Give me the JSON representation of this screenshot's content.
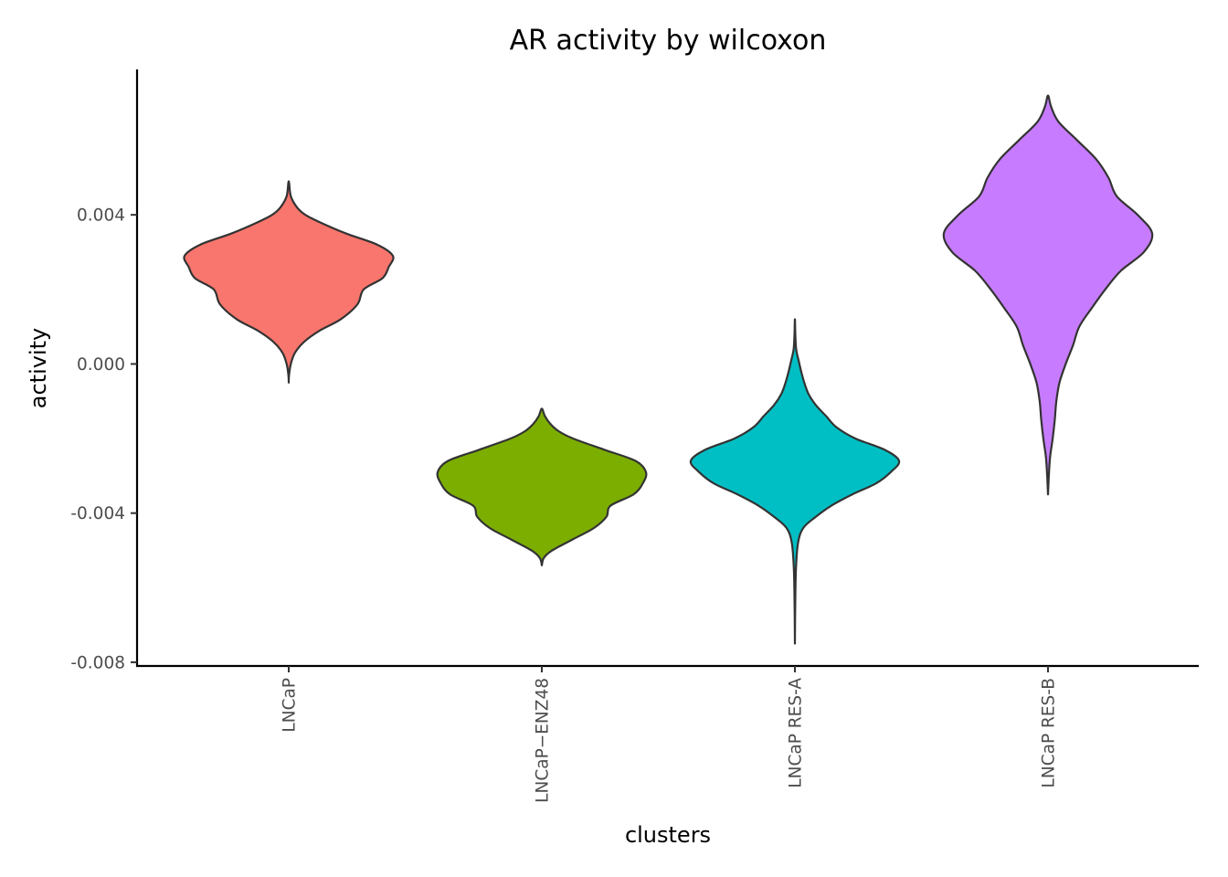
{
  "chart_data": {
    "type": "violin",
    "title": "AR activity by wilcoxon",
    "xlabel": "clusters",
    "ylabel": "activity",
    "ylim": [
      -0.0081,
      0.0079
    ],
    "yticks": [
      0.004,
      0.0,
      -0.004,
      -0.008
    ],
    "ytick_labels": [
      "0.004",
      "0.000",
      "-0.004",
      "-0.008"
    ],
    "categories": [
      "LNCaP",
      "LNCaP−ENZ48",
      "LNCaP RES-A",
      "LNCaP RES-B"
    ],
    "grid": false,
    "legend": "none",
    "series": [
      {
        "category": "LNCaP",
        "color": "#F8766D",
        "profile": [
          [
            -0.0005,
            0.0
          ],
          [
            -0.0003,
            0.003
          ],
          [
            0.0,
            0.02
          ],
          [
            0.0003,
            0.06
          ],
          [
            0.0006,
            0.15
          ],
          [
            0.0009,
            0.3
          ],
          [
            0.0012,
            0.5
          ],
          [
            0.0016,
            0.66
          ],
          [
            0.002,
            0.72
          ],
          [
            0.0023,
            0.9
          ],
          [
            0.0026,
            0.96
          ],
          [
            0.0029,
            1.0
          ],
          [
            0.0032,
            0.85
          ],
          [
            0.0035,
            0.55
          ],
          [
            0.0038,
            0.3
          ],
          [
            0.004,
            0.16
          ],
          [
            0.0042,
            0.08
          ],
          [
            0.0045,
            0.02
          ],
          [
            0.0049,
            0.0
          ]
        ]
      },
      {
        "category": "LNCaP−ENZ48",
        "color": "#7CAE00",
        "profile": [
          [
            -0.0054,
            0.0
          ],
          [
            -0.0052,
            0.02
          ],
          [
            -0.005,
            0.1
          ],
          [
            -0.0047,
            0.3
          ],
          [
            -0.0044,
            0.5
          ],
          [
            -0.0041,
            0.62
          ],
          [
            -0.0038,
            0.66
          ],
          [
            -0.0035,
            0.88
          ],
          [
            -0.0032,
            0.97
          ],
          [
            -0.0029,
            1.0
          ],
          [
            -0.0026,
            0.9
          ],
          [
            -0.0023,
            0.6
          ],
          [
            -0.002,
            0.3
          ],
          [
            -0.0018,
            0.16
          ],
          [
            -0.0016,
            0.08
          ],
          [
            -0.0014,
            0.03
          ],
          [
            -0.0012,
            0.0
          ]
        ]
      },
      {
        "category": "LNCaP RES-A",
        "color": "#00BFC4",
        "profile": [
          [
            -0.0075,
            0.0
          ],
          [
            -0.0065,
            0.003
          ],
          [
            -0.0055,
            0.01
          ],
          [
            -0.0048,
            0.03
          ],
          [
            -0.0044,
            0.08
          ],
          [
            -0.0041,
            0.2
          ],
          [
            -0.0038,
            0.35
          ],
          [
            -0.0035,
            0.55
          ],
          [
            -0.0032,
            0.78
          ],
          [
            -0.0029,
            0.92
          ],
          [
            -0.0026,
            1.0
          ],
          [
            -0.0023,
            0.86
          ],
          [
            -0.002,
            0.58
          ],
          [
            -0.0017,
            0.4
          ],
          [
            -0.0014,
            0.3
          ],
          [
            -0.0011,
            0.2
          ],
          [
            -0.0008,
            0.13
          ],
          [
            -0.0005,
            0.09
          ],
          [
            -0.0002,
            0.06
          ],
          [
            0.0001,
            0.035
          ],
          [
            0.0004,
            0.012
          ],
          [
            0.0008,
            0.004
          ],
          [
            0.0012,
            0.0
          ]
        ]
      },
      {
        "category": "LNCaP RES-B",
        "color": "#C77CFF",
        "profile": [
          [
            -0.0035,
            0.0
          ],
          [
            -0.003,
            0.008
          ],
          [
            -0.0025,
            0.02
          ],
          [
            -0.002,
            0.045
          ],
          [
            -0.0015,
            0.065
          ],
          [
            -0.001,
            0.08
          ],
          [
            -0.0005,
            0.11
          ],
          [
            0.0,
            0.17
          ],
          [
            0.0005,
            0.24
          ],
          [
            0.001,
            0.3
          ],
          [
            0.0015,
            0.42
          ],
          [
            0.002,
            0.55
          ],
          [
            0.0025,
            0.7
          ],
          [
            0.003,
            0.92
          ],
          [
            0.0035,
            1.0
          ],
          [
            0.004,
            0.86
          ],
          [
            0.0045,
            0.66
          ],
          [
            0.005,
            0.58
          ],
          [
            0.0055,
            0.46
          ],
          [
            0.006,
            0.28
          ],
          [
            0.0065,
            0.1
          ],
          [
            0.0069,
            0.03
          ],
          [
            0.0072,
            0.0
          ]
        ]
      }
    ]
  }
}
